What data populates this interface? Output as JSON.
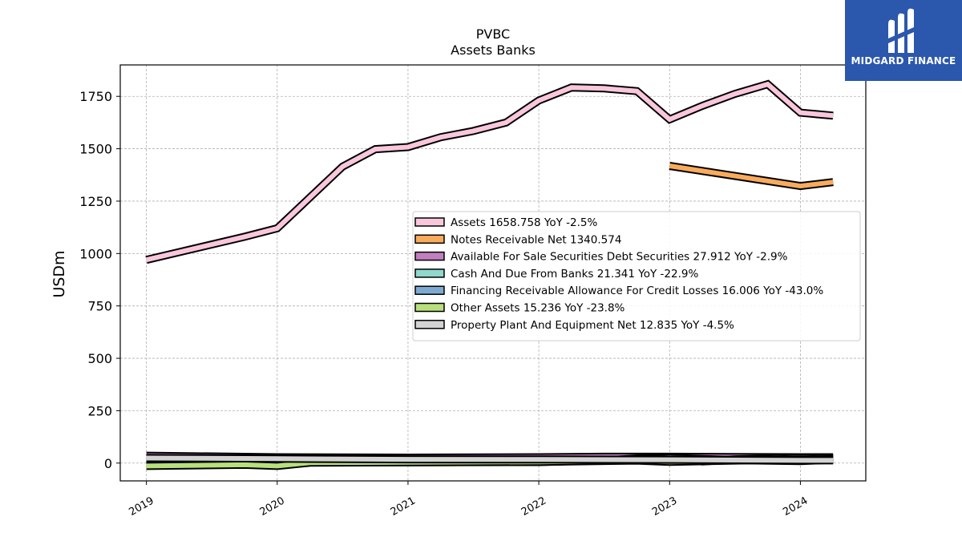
{
  "brand": {
    "name": "MIDGARD FINANCE",
    "color": "#2b57ad",
    "icon": "midgard-logo-icon"
  },
  "chart_data": {
    "type": "area",
    "title": "PVBC",
    "subtitle": "Assets Banks",
    "ylabel": "USDm",
    "xlabel": "",
    "ylim": [
      -85,
      1900
    ],
    "xlim": [
      2018.8,
      2024.5
    ],
    "yticks": [
      0,
      250,
      500,
      750,
      1000,
      1250,
      1500,
      1750
    ],
    "xticks": [
      "2019",
      "2020",
      "2021",
      "2022",
      "2023",
      "2024"
    ],
    "grid": true,
    "legend_position": "center-right",
    "series": [
      {
        "name": "Assets",
        "legend": "Assets  1658.758 YoY -2.5%",
        "color": "#f9c6dc",
        "x": [
          2019.0,
          2019.75,
          2020.0,
          2020.5,
          2020.75,
          2021.0,
          2021.25,
          2021.5,
          2021.75,
          2022.0,
          2022.25,
          2022.5,
          2022.75,
          2023.0,
          2023.25,
          2023.5,
          2023.75,
          2024.0,
          2024.25
        ],
        "y": [
          970,
          1080,
          1120,
          1415,
          1498,
          1508,
          1555,
          1585,
          1625,
          1730,
          1792,
          1788,
          1775,
          1640,
          1705,
          1762,
          1808,
          1672,
          1658
        ]
      },
      {
        "name": "Notes Receivable Net",
        "legend": "Notes Receivable Net  1340.574",
        "color": "#f9ab5c",
        "x": [
          2023.0,
          2024.0,
          2024.25
        ],
        "y": [
          1418,
          1322,
          1341
        ]
      },
      {
        "name": "Available For Sale Securities Debt Securities",
        "legend": "Available For Sale Securities Debt Securities  27.912 YoY -2.9%",
        "color": "#c27fc0",
        "x": [
          2019.0,
          2020.0,
          2021.0,
          2022.0,
          2022.5,
          2023.0,
          2023.5,
          2024.0,
          2024.25
        ],
        "y": [
          35,
          28,
          26,
          28,
          30,
          30,
          29,
          28,
          28
        ]
      },
      {
        "name": "Cash And Due From Banks",
        "legend": "Cash And Due From Banks  21.341 YoY -22.9%",
        "color": "#8fd8cb",
        "x": [
          2019.0,
          2020.0,
          2021.0,
          2022.0,
          2022.5,
          2022.75,
          2023.0,
          2023.25,
          2023.5,
          2024.0,
          2024.25
        ],
        "y": [
          20,
          20,
          16,
          14,
          12,
          22,
          27,
          8,
          18,
          26,
          21
        ]
      },
      {
        "name": "Financing Receivable Allowance For Credit Losses",
        "legend": "Financing Receivable Allowance For Credit Losses  16.006 YoY -43.0%",
        "color": "#7ea9d1",
        "x": [
          2019.0,
          2020.0,
          2021.0,
          2022.0,
          2022.75,
          2023.0,
          2023.5,
          2024.0,
          2024.25
        ],
        "y": [
          4,
          4,
          4,
          5,
          18,
          25,
          14,
          10,
          16
        ]
      },
      {
        "name": "Other Assets",
        "legend": "Other Assets  15.236 YoY -23.8%",
        "color": "#b7e07c",
        "x": [
          2019.0,
          2019.75,
          2020.0,
          2020.25,
          2021.0,
          2022.0,
          2022.75,
          2023.0,
          2024.0,
          2024.25
        ],
        "y": [
          -14,
          -8,
          -14,
          2,
          4,
          6,
          12,
          6,
          18,
          15
        ]
      },
      {
        "name": "Property Plant And Equipment Net",
        "legend": "Property Plant And Equipment Net  12.835 YoY -4.5%",
        "color": "#d3d3d3",
        "x": [
          2019.0,
          2019.75,
          2020.0,
          2021.0,
          2022.0,
          2023.0,
          2024.0,
          2024.25
        ],
        "y": [
          24,
          22,
          21,
          18,
          17,
          16,
          13,
          12.8
        ]
      }
    ]
  }
}
